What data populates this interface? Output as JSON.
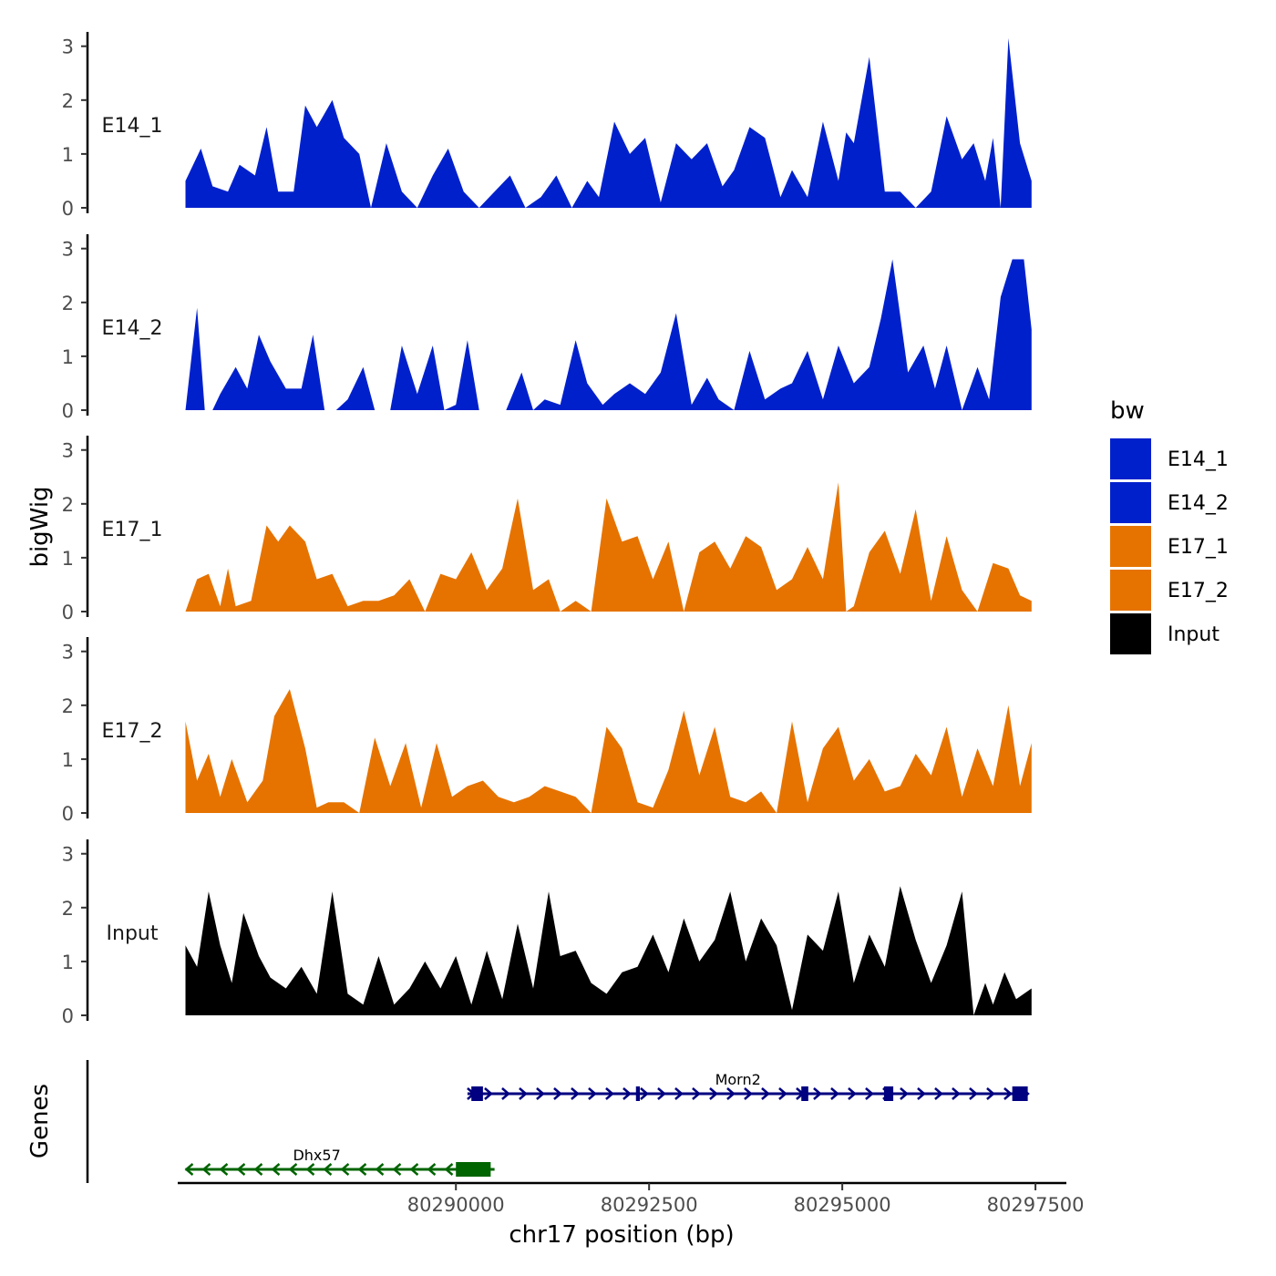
{
  "chart_data": {
    "type": "area",
    "title": "",
    "ylabel": "bigWig",
    "xlabel": "chr17 position (bp)",
    "chromosome": "chr17",
    "xlim": [
      80286400,
      80297900
    ],
    "ylim": [
      0,
      3.3
    ],
    "yticks": [
      0,
      1,
      2,
      3
    ],
    "xticks": [
      80290000,
      80292500,
      80295000,
      80297500
    ],
    "xtick_labels": [
      "80290000",
      "80292500",
      "80295000",
      "80297500"
    ],
    "genes_label": "Genes",
    "legend": {
      "title": "bw",
      "entries": [
        {
          "label": "E14_1",
          "color": "#0020CC"
        },
        {
          "label": "E14_2",
          "color": "#0020CC"
        },
        {
          "label": "E17_1",
          "color": "#E67300"
        },
        {
          "label": "E17_2",
          "color": "#E67300"
        },
        {
          "label": "Input",
          "color": "#000000"
        }
      ]
    },
    "tracks": [
      {
        "name": "E14_1",
        "color": "#0020CC",
        "x": [
          80286500,
          80286700,
          80286850,
          80287050,
          80287200,
          80287400,
          80287550,
          80287700,
          80287900,
          80288050,
          80288200,
          80288400,
          80288550,
          80288750,
          80288900,
          80289100,
          80289300,
          80289500,
          80289700,
          80289900,
          80290100,
          80290300,
          80290500,
          80290700,
          80290900,
          80291100,
          80291300,
          80291500,
          80291700,
          80291850,
          80292050,
          80292250,
          80292450,
          80292650,
          80292850,
          80293050,
          80293250,
          80293450,
          80293600,
          80293800,
          80294000,
          80294200,
          80294350,
          80294550,
          80294750,
          80294950,
          80295050,
          80295150,
          80295350,
          80295550,
          80295750,
          80295950,
          80296150,
          80296350,
          80296550,
          80296700,
          80296850,
          80296950,
          80297050,
          80297150,
          80297300,
          80297450
        ],
        "y": [
          0.5,
          1.1,
          0.4,
          0.3,
          0.8,
          0.6,
          1.5,
          0.3,
          0.3,
          1.9,
          1.5,
          2.0,
          1.3,
          1.0,
          0.0,
          1.2,
          0.3,
          0.0,
          0.6,
          1.1,
          0.3,
          0.0,
          0.3,
          0.6,
          0.0,
          0.2,
          0.6,
          0.0,
          0.5,
          0.2,
          1.6,
          1.0,
          1.3,
          0.1,
          1.2,
          0.9,
          1.2,
          0.4,
          0.7,
          1.5,
          1.3,
          0.2,
          0.7,
          0.2,
          1.6,
          0.5,
          1.4,
          1.2,
          2.8,
          0.3,
          0.3,
          0.0,
          0.3,
          1.7,
          0.9,
          1.2,
          0.5,
          1.3,
          0.0,
          3.15,
          1.2,
          0.5
        ]
      },
      {
        "name": "E14_2",
        "color": "#0020CC",
        "x": [
          80286500,
          80286650,
          80286750,
          80286850,
          80286950,
          80287150,
          80287300,
          80287450,
          80287600,
          80287800,
          80288000,
          80288150,
          80288300,
          80288450,
          80288600,
          80288800,
          80288950,
          80289150,
          80289300,
          80289500,
          80289700,
          80289850,
          80290000,
          80290150,
          80290300,
          80290450,
          80290650,
          80290850,
          80291000,
          80291150,
          80291350,
          80291550,
          80291700,
          80291900,
          80292050,
          80292250,
          80292450,
          80292650,
          80292850,
          80293050,
          80293250,
          80293400,
          80293600,
          80293800,
          80294000,
          80294200,
          80294350,
          80294550,
          80294750,
          80294950,
          80295150,
          80295350,
          80295500,
          80295650,
          80295850,
          80296050,
          80296200,
          80296350,
          80296550,
          80296750,
          80296900,
          80297050,
          80297200,
          80297350,
          80297450
        ],
        "y": [
          0.0,
          1.9,
          0.0,
          0.0,
          0.3,
          0.8,
          0.4,
          1.4,
          0.9,
          0.4,
          0.4,
          1.4,
          0.0,
          0.0,
          0.2,
          0.8,
          0.0,
          0.0,
          1.2,
          0.3,
          1.2,
          0.0,
          0.1,
          1.3,
          0.0,
          0.0,
          0.0,
          0.7,
          0.0,
          0.2,
          0.1,
          1.3,
          0.5,
          0.1,
          0.3,
          0.5,
          0.3,
          0.7,
          1.8,
          0.1,
          0.6,
          0.2,
          0.0,
          1.1,
          0.2,
          0.4,
          0.5,
          1.1,
          0.2,
          1.2,
          0.5,
          0.8,
          1.7,
          2.8,
          0.7,
          1.2,
          0.4,
          1.2,
          0.0,
          0.8,
          0.2,
          2.1,
          2.8,
          2.8,
          1.5
        ]
      },
      {
        "name": "E17_1",
        "color": "#E67300",
        "x": [
          80286500,
          80286650,
          80286800,
          80286950,
          80287050,
          80287150,
          80287350,
          80287550,
          80287700,
          80287850,
          80288050,
          80288200,
          80288400,
          80288600,
          80288800,
          80289000,
          80289200,
          80289400,
          80289600,
          80289800,
          80290000,
          80290200,
          80290400,
          80290600,
          80290800,
          80291000,
          80291200,
          80291350,
          80291550,
          80291750,
          80291950,
          80292150,
          80292350,
          80292550,
          80292750,
          80292950,
          80293150,
          80293350,
          80293550,
          80293750,
          80293950,
          80294150,
          80294350,
          80294550,
          80294750,
          80294950,
          80295050,
          80295150,
          80295350,
          80295550,
          80295750,
          80295950,
          80296150,
          80296350,
          80296550,
          80296750,
          80296950,
          80297150,
          80297300,
          80297450
        ],
        "y": [
          0.0,
          0.6,
          0.7,
          0.1,
          0.8,
          0.1,
          0.2,
          1.6,
          1.3,
          1.6,
          1.3,
          0.6,
          0.7,
          0.1,
          0.2,
          0.2,
          0.3,
          0.6,
          0.0,
          0.7,
          0.6,
          1.1,
          0.4,
          0.8,
          2.1,
          0.4,
          0.6,
          0.0,
          0.2,
          0.0,
          2.1,
          1.3,
          1.4,
          0.6,
          1.3,
          0.0,
          1.1,
          1.3,
          0.8,
          1.4,
          1.2,
          0.4,
          0.6,
          1.2,
          0.6,
          2.4,
          0.0,
          0.1,
          1.1,
          1.5,
          0.7,
          1.9,
          0.2,
          1.4,
          0.4,
          0.0,
          0.9,
          0.8,
          0.3,
          0.2
        ]
      },
      {
        "name": "E17_2",
        "color": "#E67300",
        "x": [
          80286500,
          80286650,
          80286800,
          80286950,
          80287100,
          80287300,
          80287500,
          80287650,
          80287850,
          80288050,
          80288200,
          80288350,
          80288550,
          80288750,
          80288950,
          80289150,
          80289350,
          80289550,
          80289750,
          80289950,
          80290150,
          80290350,
          80290550,
          80290750,
          80290950,
          80291150,
          80291350,
          80291550,
          80291750,
          80291950,
          80292150,
          80292350,
          80292550,
          80292750,
          80292950,
          80293150,
          80293350,
          80293550,
          80293750,
          80293950,
          80294150,
          80294350,
          80294550,
          80294750,
          80294950,
          80295150,
          80295350,
          80295550,
          80295750,
          80295950,
          80296150,
          80296350,
          80296550,
          80296750,
          80296950,
          80297150,
          80297300,
          80297450
        ],
        "y": [
          1.7,
          0.6,
          1.1,
          0.3,
          1.0,
          0.2,
          0.6,
          1.8,
          2.3,
          1.2,
          0.1,
          0.2,
          0.2,
          0.0,
          1.4,
          0.5,
          1.3,
          0.1,
          1.3,
          0.3,
          0.5,
          0.6,
          0.3,
          0.2,
          0.3,
          0.5,
          0.4,
          0.3,
          0.0,
          1.6,
          1.2,
          0.2,
          0.1,
          0.8,
          1.9,
          0.7,
          1.6,
          0.3,
          0.2,
          0.4,
          0.0,
          1.7,
          0.2,
          1.2,
          1.6,
          0.6,
          1.0,
          0.4,
          0.5,
          1.1,
          0.7,
          1.6,
          0.3,
          1.2,
          0.5,
          2.0,
          0.5,
          1.3
        ]
      },
      {
        "name": "Input",
        "color": "#000000",
        "x": [
          80286500,
          80286650,
          80286800,
          80286950,
          80287100,
          80287250,
          80287450,
          80287600,
          80287800,
          80288000,
          80288200,
          80288400,
          80288600,
          80288800,
          80289000,
          80289200,
          80289400,
          80289600,
          80289800,
          80290000,
          80290200,
          80290400,
          80290600,
          80290800,
          80291000,
          80291200,
          80291350,
          80291550,
          80291750,
          80291950,
          80292150,
          80292350,
          80292550,
          80292750,
          80292950,
          80293150,
          80293350,
          80293550,
          80293750,
          80293950,
          80294150,
          80294350,
          80294550,
          80294750,
          80294950,
          80295150,
          80295350,
          80295550,
          80295750,
          80295950,
          80296150,
          80296350,
          80296550,
          80296700,
          80296850,
          80296950,
          80297100,
          80297250,
          80297450
        ],
        "y": [
          1.3,
          0.9,
          2.3,
          1.3,
          0.6,
          1.9,
          1.1,
          0.7,
          0.5,
          0.9,
          0.4,
          2.3,
          0.4,
          0.2,
          1.1,
          0.2,
          0.5,
          1.0,
          0.5,
          1.1,
          0.2,
          1.2,
          0.3,
          1.7,
          0.5,
          2.3,
          1.1,
          1.2,
          0.6,
          0.4,
          0.8,
          0.9,
          1.5,
          0.8,
          1.8,
          1.0,
          1.4,
          2.3,
          1.0,
          1.8,
          1.3,
          0.1,
          1.5,
          1.2,
          2.3,
          0.6,
          1.5,
          0.9,
          2.4,
          1.4,
          0.6,
          1.3,
          2.3,
          0.0,
          0.6,
          0.2,
          0.8,
          0.3,
          0.5
        ]
      }
    ],
    "genes": [
      {
        "name": "Morn2",
        "strand": "+",
        "color": "#000080",
        "start": 80290150,
        "end": 80297400,
        "exons": [
          [
            80290200,
            80290350
          ],
          [
            80292330,
            80292380
          ],
          [
            80294470,
            80294560
          ],
          [
            80295540,
            80295660
          ],
          [
            80297200,
            80297400
          ]
        ]
      },
      {
        "name": "Dhx57",
        "strand": "-",
        "color": "#006400",
        "start": 80286500,
        "end": 80290500,
        "exons": [
          [
            80290000,
            80290450
          ]
        ]
      }
    ]
  }
}
